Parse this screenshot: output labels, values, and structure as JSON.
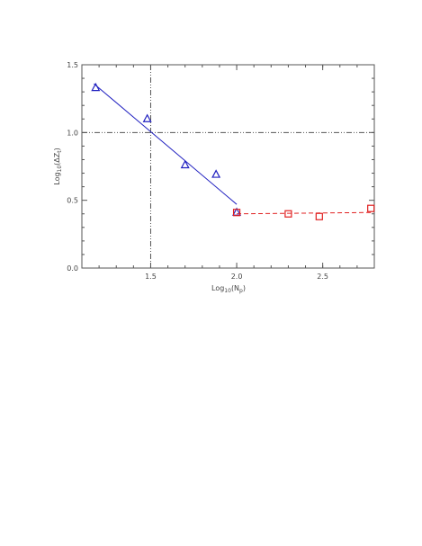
{
  "chart_data": {
    "type": "scatter",
    "xlabel": {
      "base": "Log",
      "base_sub": "10",
      "open": "(N",
      "var_sub": "p",
      "close": ")"
    },
    "ylabel": {
      "base": "Log",
      "base_sub": "10",
      "open": "(ΔZ",
      "var_sub": "t",
      "close": ")"
    },
    "xlim": [
      1.1,
      2.8
    ],
    "ylim": [
      0.0,
      1.5
    ],
    "xticks": [
      1.5,
      2.0,
      2.5
    ],
    "xtick_labels": [
      "1.5",
      "2.0",
      "2.5"
    ],
    "yticks": [
      0.0,
      0.5,
      1.0,
      1.5
    ],
    "ytick_labels": [
      "0.0",
      "0.5",
      "1.0",
      "1.5"
    ],
    "grid": false,
    "legend": "none",
    "series": [
      {
        "marker": "triangle",
        "color": "#2020c0",
        "x": [
          1.18,
          1.48,
          1.7,
          1.88,
          2.0
        ],
        "y": [
          1.33,
          1.1,
          0.76,
          0.69,
          0.41
        ]
      },
      {
        "marker": "square",
        "color": "#e02020",
        "x": [
          2.0,
          2.3,
          2.48,
          2.78
        ],
        "y": [
          0.41,
          0.4,
          0.38,
          0.44
        ]
      }
    ],
    "fit_lines": [
      {
        "style": "solid",
        "color": "#2020c0",
        "x": [
          1.17,
          2.0
        ],
        "y": [
          1.36,
          0.47
        ]
      },
      {
        "style": "dashed",
        "color": "#e02020",
        "x": [
          2.0,
          2.78
        ],
        "y": [
          0.4,
          0.41
        ]
      }
    ],
    "reference_lines": [
      {
        "orientation": "vertical",
        "value": 1.5,
        "style": "dash-dot-dot",
        "color": "#555555"
      },
      {
        "orientation": "horizontal",
        "value": 1.0,
        "style": "dash-dot-dot",
        "color": "#555555"
      }
    ]
  }
}
